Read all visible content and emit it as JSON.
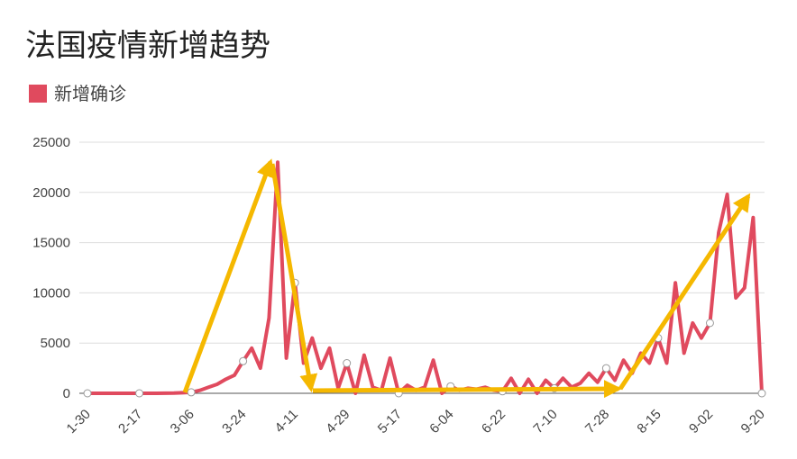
{
  "chart_data": {
    "type": "line",
    "title": "法国疫情新增趋势",
    "categories": [
      "1-30",
      null,
      null,
      null,
      null,
      null,
      "2-17",
      null,
      null,
      null,
      null,
      null,
      "3-06",
      null,
      null,
      null,
      null,
      null,
      "3-24",
      null,
      null,
      null,
      null,
      null,
      "4-11",
      null,
      null,
      null,
      null,
      null,
      "4-29",
      null,
      null,
      null,
      null,
      null,
      "5-17",
      null,
      null,
      null,
      null,
      null,
      "6-04",
      null,
      null,
      null,
      null,
      null,
      "6-22",
      null,
      null,
      null,
      null,
      null,
      "7-10",
      null,
      null,
      null,
      null,
      null,
      "7-28",
      null,
      null,
      null,
      null,
      null,
      "8-15",
      null,
      null,
      null,
      null,
      null,
      "9-02",
      null,
      null,
      null,
      null,
      null,
      "9-20"
    ],
    "series": [
      {
        "name": "新增确诊",
        "color": "#e04a5e",
        "values": [
          0,
          0,
          0,
          0,
          0,
          0,
          0,
          0,
          0,
          5,
          20,
          50,
          100,
          300,
          600,
          900,
          1400,
          1800,
          3200,
          4500,
          2500,
          7500,
          23000,
          3500,
          11000,
          3000,
          5500,
          2500,
          4500,
          500,
          3000,
          0,
          3800,
          600,
          300,
          3500,
          0,
          800,
          300,
          600,
          3300,
          0,
          700,
          300,
          500,
          400,
          600,
          300,
          200,
          1500,
          0,
          1400,
          0,
          1300,
          500,
          1500,
          600,
          1000,
          2000,
          1100,
          2500,
          1300,
          3300,
          2000,
          4000,
          3000,
          5500,
          3000,
          11000,
          4000,
          7000,
          5500,
          7000,
          16000,
          19800,
          9500,
          10500,
          17500,
          0
        ]
      }
    ],
    "ylim": [
      0,
      25000
    ],
    "yticks": [
      0,
      5000,
      10000,
      15000,
      20000,
      25000
    ],
    "grid": true
  }
}
